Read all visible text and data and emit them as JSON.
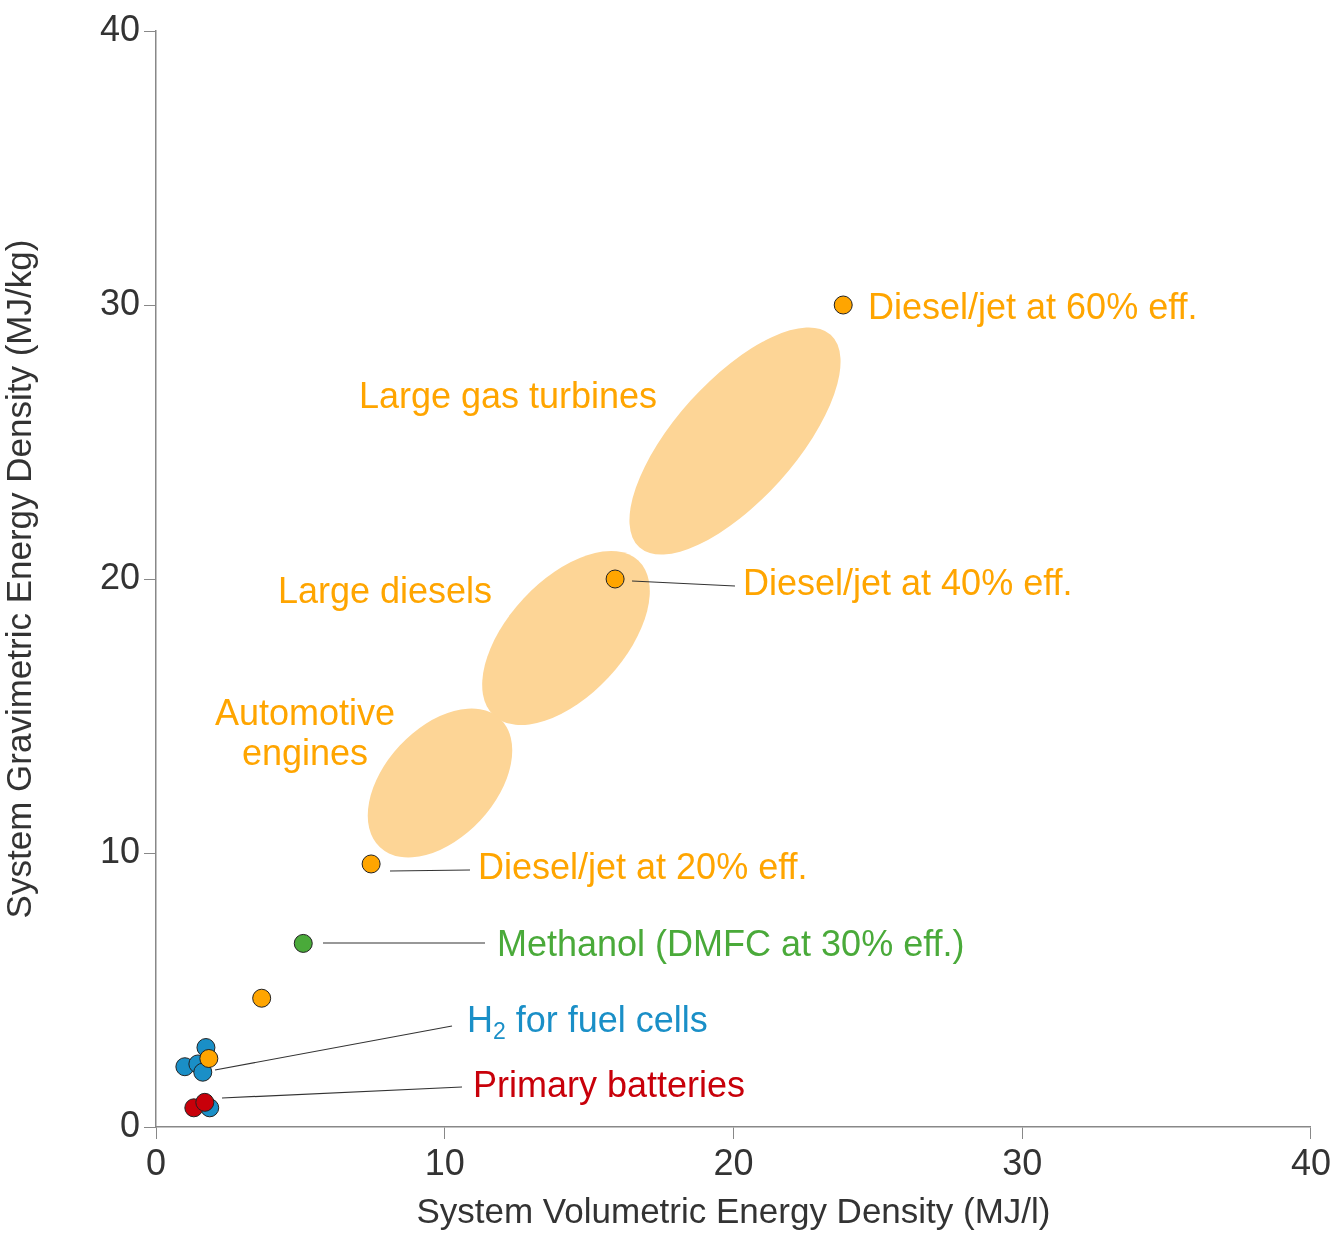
{
  "chart_data": {
    "type": "scatter",
    "xlabel": "System Volumetric Energy Density (MJ/l)",
    "ylabel": "System Gravimetric Energy Density (MJ/kg)",
    "xlim": [
      0,
      40
    ],
    "xticks": [
      0,
      10,
      20,
      30,
      40
    ],
    "ylim": [
      0,
      40
    ],
    "yticks": [
      0,
      10,
      20,
      30,
      40
    ],
    "grid": false,
    "legend": false,
    "marker": "circle",
    "series": [
      {
        "name": "Diesel/jet at 60% eff.",
        "color": "#ffa500",
        "x": [
          23.8
        ],
        "values": [
          30
        ]
      },
      {
        "name": "Diesel/jet at 40% eff.",
        "color": "#ffa500",
        "x": [
          15.9
        ],
        "values": [
          20
        ]
      },
      {
        "name": "Diesel/jet at 20% eff.",
        "color": "#ffa500",
        "x": [
          7.45
        ],
        "values": [
          9.6
        ]
      },
      {
        "name": "Methanol (DMFC at 30% eff.)",
        "color": "#4aaa3a",
        "x": [
          5.1
        ],
        "values": [
          6.7
        ]
      },
      {
        "color": "#ffa500",
        "x": [
          3.66
        ],
        "values": [
          4.7
        ]
      },
      {
        "name": "H$_{2}$ for fuel cells",
        "color": "#1a8fc7",
        "x": [
          1.0,
          1.73,
          1.45,
          1.62,
          1.86
        ],
        "values": [
          2.2,
          2.9,
          2.3,
          2.0,
          0.7
        ]
      },
      {
        "color": "#ffa500",
        "x": [
          1.83
        ],
        "values": [
          2.5
        ]
      },
      {
        "name": "Primary batteries",
        "color": "#c8000a",
        "x": [
          1.31,
          1.69
        ],
        "values": [
          0.7,
          0.9
        ]
      }
    ],
    "annotations": [
      "Large gas turbines",
      "Large diesels",
      "Automotive\nengines"
    ]
  }
}
